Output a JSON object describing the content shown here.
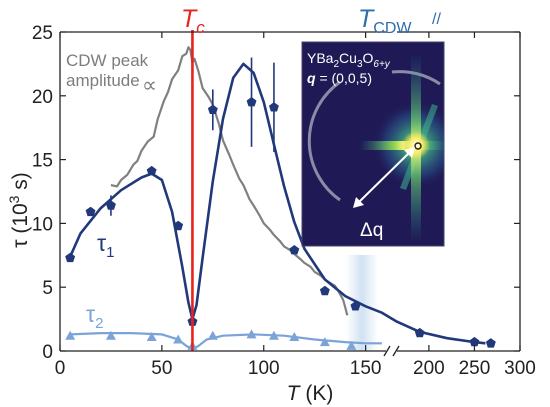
{
  "chart_data": {
    "type": "line",
    "xlabel": "T (K)",
    "xlabel_italic": "T",
    "xlabel_unit": " (K)",
    "ylabel": "τ (10³ s)",
    "ylabel_parts": [
      "τ (10",
      "3",
      " s)"
    ],
    "x_segments": [
      {
        "range": [
          0,
          160
        ],
        "ticks": [
          0,
          50,
          100,
          150
        ]
      },
      {
        "range": [
          165,
          300
        ],
        "ticks": [
          200,
          250,
          300
        ]
      }
    ],
    "ylim": [
      0,
      25
    ],
    "yticks": [
      0,
      5,
      10,
      15,
      20,
      25
    ],
    "grid": false,
    "markers": {
      "tc": {
        "label": "T",
        "label_sub": "c",
        "x": 65,
        "color": "#e8231f"
      },
      "tcdw": {
        "label": "T",
        "label_sub": "CDW",
        "x": 155,
        "color": "#2e6eab"
      }
    },
    "series": [
      {
        "name": "τ₁",
        "label_main": "τ",
        "label_sub": "1",
        "color": "#21397a",
        "points": [
          {
            "x": 5,
            "y": 7.3,
            "err": 0
          },
          {
            "x": 15,
            "y": 10.9,
            "err": 0
          },
          {
            "x": 25,
            "y": 11.4,
            "err": 0.8
          },
          {
            "x": 45,
            "y": 14.1,
            "err": 0
          },
          {
            "x": 58,
            "y": 9.8,
            "err": 0
          },
          {
            "x": 65,
            "y": 2.3,
            "err": 0
          },
          {
            "x": 75,
            "y": 18.9,
            "err": 1.6
          },
          {
            "x": 94,
            "y": 19.5,
            "err": 3.5
          },
          {
            "x": 105,
            "y": 19.1,
            "err": 3.5
          },
          {
            "x": 115,
            "y": 7.9,
            "err": 0
          },
          {
            "x": 130,
            "y": 4.7,
            "err": 0
          },
          {
            "x": 145,
            "y": 3.5,
            "err": 0
          },
          {
            "x": 190,
            "y": 1.4,
            "err": 0
          },
          {
            "x": 250,
            "y": 0.7,
            "err": 0
          },
          {
            "x": 268,
            "y": 0.6,
            "err": 0
          }
        ],
        "fit": [
          [
            5,
            7.4
          ],
          [
            10,
            9.2
          ],
          [
            20,
            11.2
          ],
          [
            30,
            12.6
          ],
          [
            40,
            13.6
          ],
          [
            45,
            13.9
          ],
          [
            50,
            13.4
          ],
          [
            55,
            10.9
          ],
          [
            60,
            6.6
          ],
          [
            63,
            3.8
          ],
          [
            65,
            2.5
          ],
          [
            67,
            3.6
          ],
          [
            70,
            7.3
          ],
          [
            75,
            13.3
          ],
          [
            80,
            18.2
          ],
          [
            85,
            21.4
          ],
          [
            90,
            22.5
          ],
          [
            95,
            21.8
          ],
          [
            100,
            19.5
          ],
          [
            105,
            16.2
          ],
          [
            110,
            12.9
          ],
          [
            115,
            10.1
          ],
          [
            120,
            8.0
          ],
          [
            130,
            5.6
          ],
          [
            140,
            4.3
          ],
          [
            150,
            3.5
          ],
          [
            158,
            3.0
          ],
          [
            165,
            2.3
          ],
          [
            190,
            1.5
          ],
          [
            220,
            1.0
          ],
          [
            250,
            0.7
          ],
          [
            262,
            0.6
          ]
        ]
      },
      {
        "name": "τ₂",
        "label_main": "τ",
        "label_sub": "2",
        "color": "#7ba3d8",
        "points": [
          {
            "x": 5,
            "y": 1.2
          },
          {
            "x": 25,
            "y": 1.2
          },
          {
            "x": 45,
            "y": 1.1
          },
          {
            "x": 58,
            "y": 0.9
          },
          {
            "x": 65,
            "y": 0.4
          },
          {
            "x": 75,
            "y": 1.2
          },
          {
            "x": 94,
            "y": 1.3
          },
          {
            "x": 105,
            "y": 1.2
          },
          {
            "x": 115,
            "y": 1.1
          },
          {
            "x": 130,
            "y": 0.7
          },
          {
            "x": 143,
            "y": 0.4
          }
        ],
        "fit": [
          [
            5,
            1.3
          ],
          [
            20,
            1.4
          ],
          [
            35,
            1.4
          ],
          [
            50,
            1.3
          ],
          [
            58,
            0.9
          ],
          [
            62,
            0.4
          ],
          [
            65,
            0.15
          ],
          [
            68,
            0.4
          ],
          [
            72,
            0.9
          ],
          [
            80,
            1.2
          ],
          [
            95,
            1.3
          ],
          [
            110,
            1.2
          ],
          [
            125,
            0.9
          ],
          [
            140,
            0.7
          ],
          [
            150,
            0.6
          ],
          [
            158,
            0.6
          ]
        ]
      },
      {
        "name": "CDW peak amplitude",
        "label_lines": [
          "CDW peak",
          "amplitude"
        ],
        "prop_symbol": "∝",
        "color": "#808080",
        "line": [
          [
            25,
            13.0
          ],
          [
            28,
            12.9
          ],
          [
            30,
            13.4
          ],
          [
            33,
            13.8
          ],
          [
            36,
            14.6
          ],
          [
            38,
            14.9
          ],
          [
            40,
            15.7
          ],
          [
            43,
            16.4
          ],
          [
            46,
            16.8
          ],
          [
            48,
            18.2
          ],
          [
            51,
            19.6
          ],
          [
            53,
            20.3
          ],
          [
            55,
            21.3
          ],
          [
            58,
            22.0
          ],
          [
            60,
            23.1
          ],
          [
            62,
            23.3
          ],
          [
            63,
            23.8
          ],
          [
            64,
            23.6
          ],
          [
            65,
            22.6
          ],
          [
            66,
            22.9
          ],
          [
            68,
            21.9
          ],
          [
            70,
            20.6
          ],
          [
            73,
            19.9
          ],
          [
            75,
            19.3
          ],
          [
            78,
            17.8
          ],
          [
            80,
            16.5
          ],
          [
            83,
            15.4
          ],
          [
            85,
            14.6
          ],
          [
            88,
            13.5
          ],
          [
            90,
            13.0
          ],
          [
            93,
            11.9
          ],
          [
            95,
            11.4
          ],
          [
            98,
            10.6
          ],
          [
            100,
            10.0
          ],
          [
            103,
            9.5
          ],
          [
            105,
            9.1
          ],
          [
            108,
            8.6
          ],
          [
            110,
            8.2
          ],
          [
            113,
            7.9
          ],
          [
            115,
            7.6
          ],
          [
            118,
            7.2
          ],
          [
            120,
            6.9
          ],
          [
            123,
            6.6
          ],
          [
            125,
            6.2
          ],
          [
            128,
            5.9
          ],
          [
            130,
            5.6
          ],
          [
            133,
            5.3
          ],
          [
            135,
            5.1
          ],
          [
            137,
            4.6
          ],
          [
            139,
            4.0
          ],
          [
            140,
            3.4
          ],
          [
            141,
            2.8
          ]
        ]
      }
    ],
    "inset": {
      "formula_parts": [
        "YBa",
        "2",
        "Cu",
        "3",
        "O",
        "6+y"
      ],
      "q_label": "q",
      "q_value": " = (0,0,5)",
      "dq_label": "Δq",
      "background": "#1f1a55"
    },
    "axis_break_symbol": "//"
  }
}
